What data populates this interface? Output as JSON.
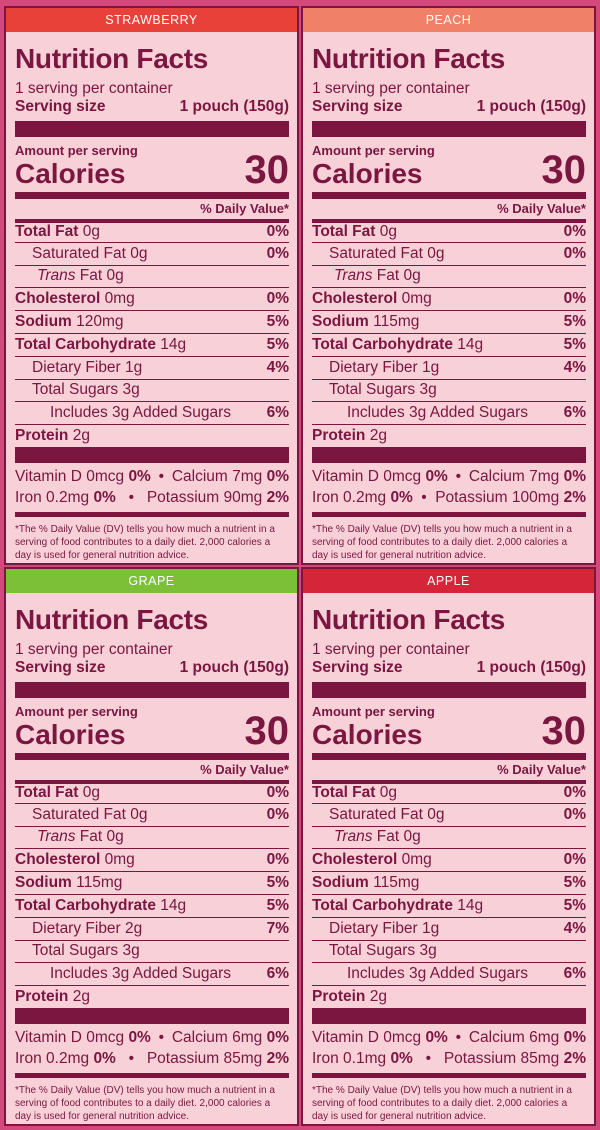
{
  "common": {
    "title": "Nutrition Facts",
    "servings": "1 serving per container",
    "serving_size_label": "Serving size",
    "serving_size_value": "1 pouch (150g)",
    "amount_per_serving": "Amount per serving",
    "calories_label": "Calories",
    "dv_header": "% Daily Value*",
    "total_fat_label": "Total Fat",
    "sat_fat_label": "Saturated Fat",
    "trans_fat_label_italic": "Trans",
    "trans_fat_label_rest": "Fat",
    "cholesterol_label": "Cholesterol",
    "sodium_label": "Sodium",
    "carb_label": "Total Carbohydrate",
    "fiber_label": "Dietary Fiber",
    "sugars_label": "Total Sugars",
    "added_sugars_prefix": "Includes",
    "added_sugars_suffix": "Added Sugars",
    "protein_label": "Protein",
    "vitd_label": "Vitamin D",
    "calcium_label": "Calcium",
    "iron_label": "Iron",
    "potassium_label": "Potassium",
    "bullet": "•",
    "footnote": "*The % Daily Value (DV) tells you how much a nutrient in a serving of food contributes to a daily diet. 2,000 calories a day is used for general nutrition advice."
  },
  "panels": [
    {
      "flavor": "STRAWBERRY",
      "flavor_color": "#e8413a",
      "calories": "30",
      "total_fat": "0g",
      "total_fat_dv": "0%",
      "sat_fat": "0g",
      "sat_fat_dv": "0%",
      "trans_fat": "0g",
      "cholesterol": "0mg",
      "cholesterol_dv": "0%",
      "sodium": "120mg",
      "sodium_dv": "5%",
      "carb": "14g",
      "carb_dv": "5%",
      "fiber": "1g",
      "fiber_dv": "4%",
      "sugars": "3g",
      "added_sugars": "3g",
      "added_sugars_dv": "6%",
      "protein": "2g",
      "vitd": "0mcg",
      "vitd_dv": "0%",
      "calcium": "7mg",
      "calcium_dv": "0%",
      "iron": "0.2mg",
      "iron_dv": "0%",
      "potassium": "90mg",
      "potassium_dv": "2%"
    },
    {
      "flavor": "PEACH",
      "flavor_color": "#f08068",
      "calories": "30",
      "total_fat": "0g",
      "total_fat_dv": "0%",
      "sat_fat": "0g",
      "sat_fat_dv": "0%",
      "trans_fat": "0g",
      "cholesterol": "0mg",
      "cholesterol_dv": "0%",
      "sodium": "115mg",
      "sodium_dv": "5%",
      "carb": "14g",
      "carb_dv": "5%",
      "fiber": "1g",
      "fiber_dv": "4%",
      "sugars": "3g",
      "added_sugars": "3g",
      "added_sugars_dv": "6%",
      "protein": "2g",
      "vitd": "0mcg",
      "vitd_dv": "0%",
      "calcium": "7mg",
      "calcium_dv": "0%",
      "iron": "0.2mg",
      "iron_dv": "0%",
      "potassium": "100mg",
      "potassium_dv": "2%"
    },
    {
      "flavor": "GRAPE",
      "flavor_color": "#7cc038",
      "calories": "30",
      "total_fat": "0g",
      "total_fat_dv": "0%",
      "sat_fat": "0g",
      "sat_fat_dv": "0%",
      "trans_fat": "0g",
      "cholesterol": "0mg",
      "cholesterol_dv": "0%",
      "sodium": "115mg",
      "sodium_dv": "5%",
      "carb": "14g",
      "carb_dv": "5%",
      "fiber": "2g",
      "fiber_dv": "7%",
      "sugars": "3g",
      "added_sugars": "3g",
      "added_sugars_dv": "6%",
      "protein": "2g",
      "vitd": "0mcg",
      "vitd_dv": "0%",
      "calcium": "6mg",
      "calcium_dv": "0%",
      "iron": "0.2mg",
      "iron_dv": "0%",
      "potassium": "85mg",
      "potassium_dv": "2%"
    },
    {
      "flavor": "APPLE",
      "flavor_color": "#d42638",
      "calories": "30",
      "total_fat": "0g",
      "total_fat_dv": "0%",
      "sat_fat": "0g",
      "sat_fat_dv": "0%",
      "trans_fat": "0g",
      "cholesterol": "0mg",
      "cholesterol_dv": "0%",
      "sodium": "115mg",
      "sodium_dv": "5%",
      "carb": "14g",
      "carb_dv": "5%",
      "fiber": "1g",
      "fiber_dv": "4%",
      "sugars": "3g",
      "added_sugars": "3g",
      "added_sugars_dv": "6%",
      "protein": "2g",
      "vitd": "0mcg",
      "vitd_dv": "0%",
      "calcium": "6mg",
      "calcium_dv": "0%",
      "iron": "0.1mg",
      "iron_dv": "0%",
      "potassium": "85mg",
      "potassium_dv": "2%"
    }
  ]
}
